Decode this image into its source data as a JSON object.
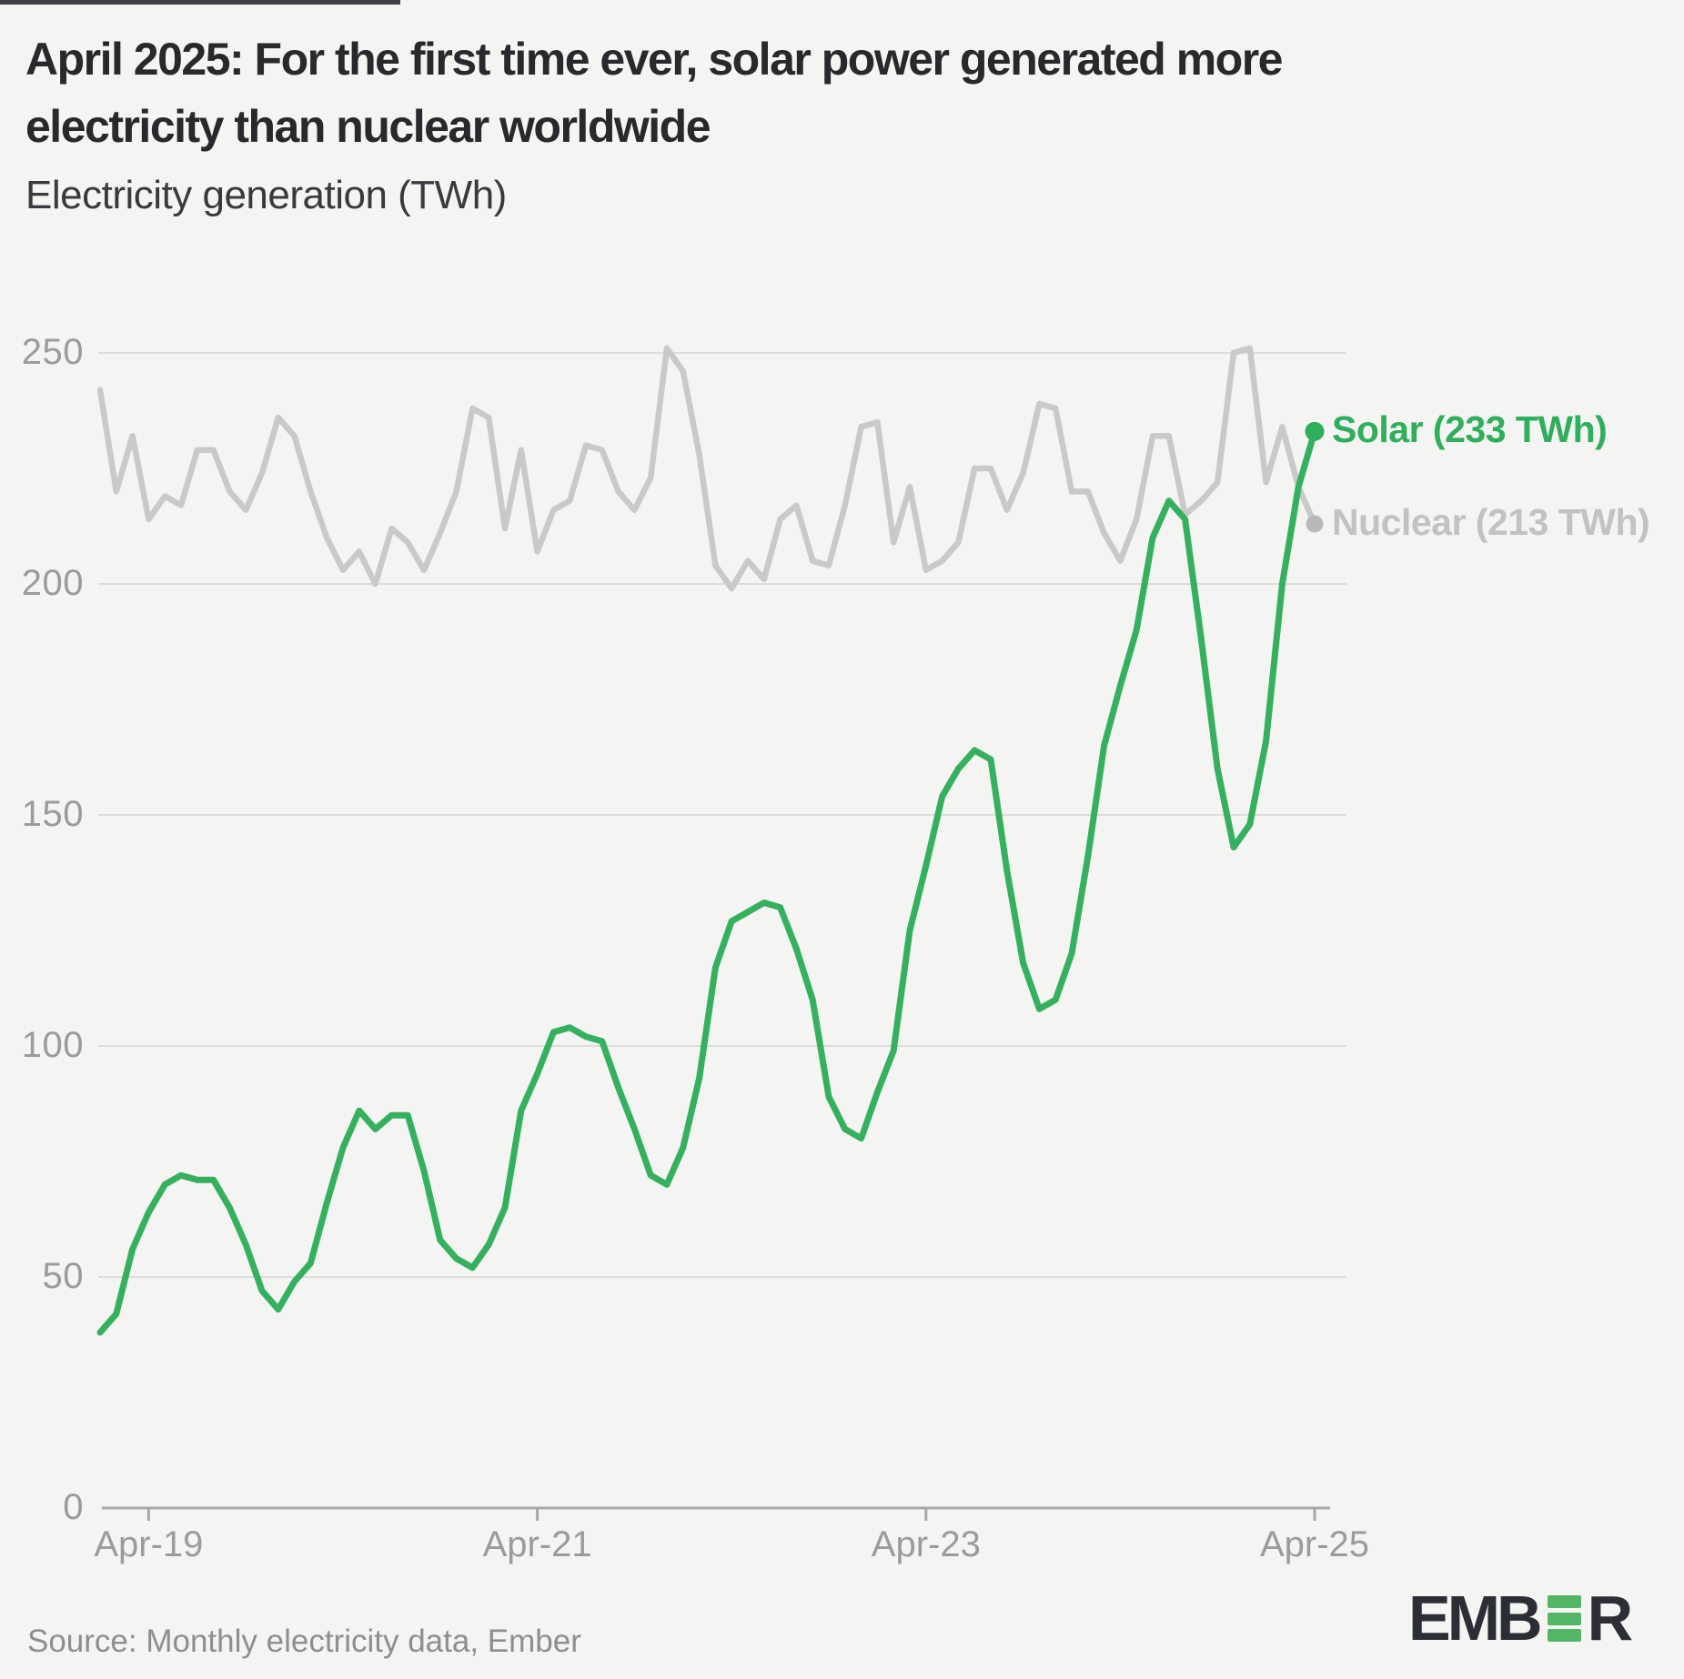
{
  "page": {
    "background": "#f4f4f2"
  },
  "decor": {
    "top_bar_color": "#3e3e43"
  },
  "header": {
    "title_line1": "April 2025: For the first time ever, solar power generated more",
    "title_line2": "electricity than nuclear worldwide",
    "subtitle": "Electricity generation (TWh)"
  },
  "chart_data": {
    "type": "line",
    "x_start": "Jan-2019",
    "x_end": "Apr-2025",
    "frequency": "monthly",
    "x_tick_labels": [
      "Apr-19",
      "Apr-21",
      "Apr-23",
      "Apr-25"
    ],
    "x_tick_month_indices": [
      3,
      27,
      51,
      75
    ],
    "y_ticks": [
      0,
      50,
      100,
      150,
      200,
      250
    ],
    "ylim": [
      0,
      250
    ],
    "grid": true,
    "legend_position": "right-end",
    "series": [
      {
        "name": "Solar",
        "color": "#35b05f",
        "label_color": "#2fae5b",
        "dot_color": "#2fae5b",
        "end_label": "Solar (233 TWh)",
        "end_value": 233,
        "line_width": 7,
        "values": [
          38,
          42,
          56,
          64,
          70,
          72,
          71,
          71,
          65,
          57,
          47,
          43,
          49,
          53,
          66,
          78,
          86,
          82,
          85,
          85,
          73,
          58,
          54,
          52,
          57,
          65,
          86,
          94,
          103,
          104,
          102,
          101,
          91,
          82,
          72,
          70,
          78,
          93,
          117,
          127,
          129,
          131,
          130,
          121,
          110,
          89,
          82,
          80,
          90,
          99,
          125,
          139,
          154,
          160,
          164,
          162,
          138,
          118,
          108,
          110,
          120,
          141,
          165,
          178,
          190,
          210,
          218,
          214,
          188,
          160,
          143,
          148,
          166,
          200,
          221,
          233
        ]
      },
      {
        "name": "Nuclear",
        "color": "#c9c9c7",
        "label_color": "#c2c2c0",
        "dot_color": "#b9b9b7",
        "end_label": "Nuclear (213 TWh)",
        "end_value": 213,
        "line_width": 6.5,
        "values": [
          242,
          220,
          232,
          214,
          219,
          217,
          229,
          229,
          220,
          216,
          224,
          236,
          232,
          220,
          210,
          203,
          207,
          200,
          212,
          209,
          203,
          211,
          220,
          238,
          236,
          212,
          229,
          207,
          216,
          218,
          230,
          229,
          220,
          216,
          223,
          251,
          246,
          228,
          204,
          199,
          205,
          201,
          214,
          217,
          205,
          204,
          217,
          234,
          235,
          209,
          221,
          203,
          205,
          209,
          225,
          225,
          216,
          224,
          239,
          238,
          220,
          220,
          211,
          205,
          214,
          232,
          232,
          215,
          218,
          222,
          250,
          251,
          222,
          234,
          221,
          213
        ]
      }
    ]
  },
  "footer": {
    "source": "Source: Monthly electricity data, Ember",
    "logo": {
      "prefix": "EMB",
      "suffix": "R",
      "green": "#55b566",
      "dark": "#2b2e34"
    }
  }
}
